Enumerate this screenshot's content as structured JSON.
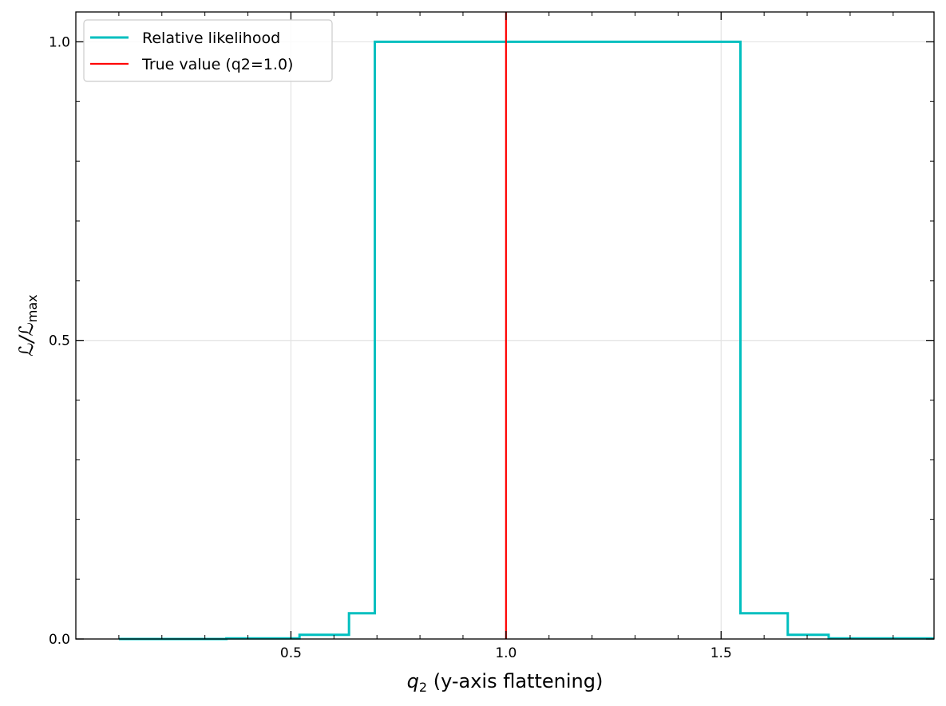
{
  "chart_data": {
    "type": "line",
    "xlabel_symbol": "q",
    "xlabel_sub": "2",
    "xlabel_text": " (y-axis flattening)",
    "ylabel_symbol": "ℒ/ℒ",
    "ylabel_sub": "max",
    "xlim": [
      0.0,
      1.995
    ],
    "ylim": [
      0.0,
      1.05
    ],
    "grid": true,
    "legend_position": "top-left",
    "x_ticks": [
      {
        "value": 0.5,
        "label": "0.5"
      },
      {
        "value": 1.0,
        "label": "1.0"
      },
      {
        "value": 1.5,
        "label": "1.5"
      }
    ],
    "y_ticks": [
      {
        "value": 0.0,
        "label": "0.0"
      },
      {
        "value": 0.5,
        "label": "0.5"
      },
      {
        "value": 1.0,
        "label": "1.0"
      }
    ],
    "series": [
      {
        "name": "Relative likelihood",
        "color": "#00bfbf",
        "style": "step",
        "x": [
          0.1,
          0.35,
          0.52,
          0.635,
          0.695,
          1.545,
          1.655,
          1.75,
          1.995
        ],
        "y": [
          0.0,
          0.001,
          0.007,
          0.043,
          1.0,
          0.043,
          0.007,
          0.001,
          0.001
        ]
      },
      {
        "name": "True value (q2=1.0)",
        "color": "#ff0000",
        "style": "vline",
        "x": 1.0
      }
    ]
  }
}
